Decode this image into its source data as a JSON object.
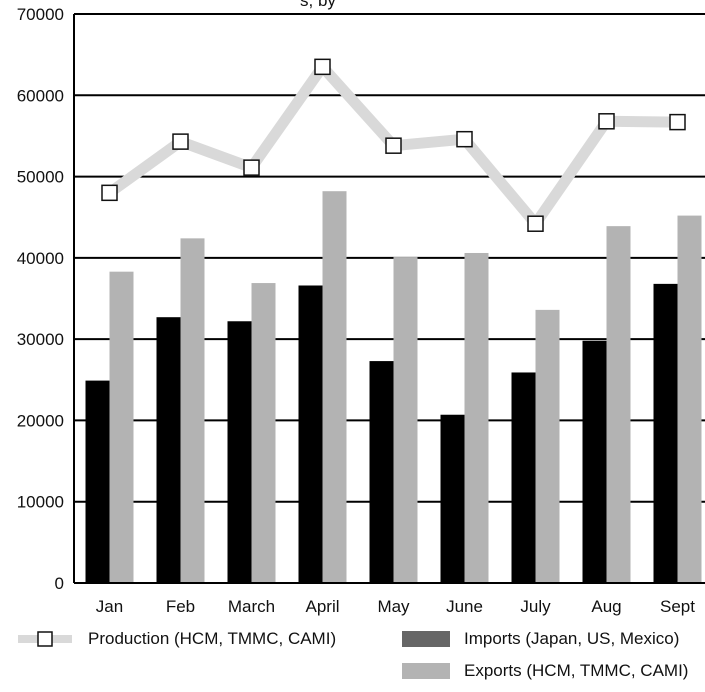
{
  "chart_data": {
    "type": "bar",
    "title_fragment": "s, by",
    "categories": [
      "Jan",
      "Feb",
      "March",
      "April",
      "May",
      "June",
      "July",
      "Aug",
      "Sept"
    ],
    "ylim": [
      0,
      70000
    ],
    "y_ticks": [
      "0",
      "10000",
      "20000",
      "30000",
      "40000",
      "50000",
      "60000",
      "70000"
    ],
    "grid": true,
    "legend_position": "bottom",
    "series": [
      {
        "name": "Imports (Japan, US, Mexico)",
        "kind": "bar",
        "color": "#000000",
        "legend_color": "#666666",
        "values": [
          24900,
          32700,
          32200,
          36600,
          27300,
          20700,
          25900,
          29800,
          36800
        ]
      },
      {
        "name": "Exports (HCM, TMMC, CAMI)",
        "kind": "bar",
        "color": "#b3b3b3",
        "legend_color": "#b3b3b3",
        "values": [
          38300,
          42400,
          36900,
          48200,
          40100,
          40600,
          33600,
          43900,
          45200
        ]
      },
      {
        "name": "Production (HCM, TMMC, CAMI)",
        "kind": "line",
        "color": "#d9d9d9",
        "marker": "square",
        "values": [
          48000,
          54300,
          51100,
          63500,
          53800,
          54600,
          44200,
          56800,
          56700
        ]
      }
    ]
  }
}
